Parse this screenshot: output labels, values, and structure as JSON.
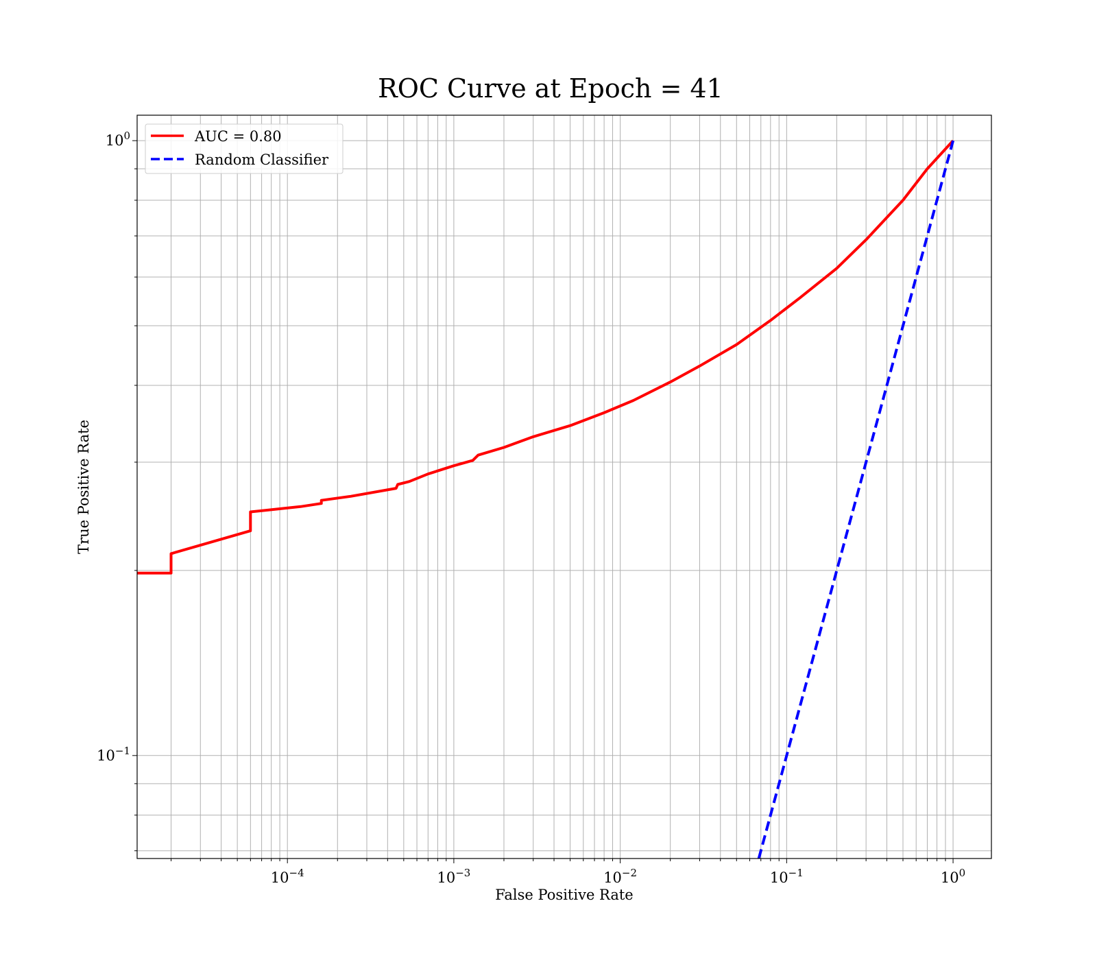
{
  "chart_data": {
    "type": "line",
    "title": "ROC Curve at Epoch = 41",
    "xlabel": "False Positive Rate",
    "ylabel": "True Positive Rate",
    "xscale": "log",
    "yscale": "log",
    "xlim": [
      1.25e-05,
      1.7
    ],
    "ylim": [
      0.068,
      1.1
    ],
    "grid": true,
    "grid_color": "#b0b0b0",
    "legend_position": "top-left",
    "x_ticks": [
      {
        "value": 0.0001,
        "base": "10",
        "exp": "−4"
      },
      {
        "value": 0.001,
        "base": "10",
        "exp": "−3"
      },
      {
        "value": 0.01,
        "base": "10",
        "exp": "−2"
      },
      {
        "value": 0.1,
        "base": "10",
        "exp": "−1"
      },
      {
        "value": 1,
        "base": "10",
        "exp": "0"
      }
    ],
    "y_ticks": [
      {
        "value": 0.1,
        "base": "10",
        "exp": "−1"
      },
      {
        "value": 1,
        "base": "10",
        "exp": "0"
      }
    ],
    "series": [
      {
        "name": "AUC = 0.80",
        "color": "#ff0000",
        "style": "solid",
        "points": [
          [
            1.25e-05,
            0.198
          ],
          [
            2e-05,
            0.198
          ],
          [
            2e-05,
            0.213
          ],
          [
            6e-05,
            0.232
          ],
          [
            6e-05,
            0.249
          ],
          [
            0.00012,
            0.254
          ],
          [
            0.00016,
            0.257
          ],
          [
            0.00016,
            0.26
          ],
          [
            0.00024,
            0.264
          ],
          [
            0.00045,
            0.272
          ],
          [
            0.00046,
            0.276
          ],
          [
            0.00054,
            0.279
          ],
          [
            0.0007,
            0.287
          ],
          [
            0.001,
            0.296
          ],
          [
            0.0013,
            0.302
          ],
          [
            0.0014,
            0.308
          ],
          [
            0.002,
            0.317
          ],
          [
            0.003,
            0.33
          ],
          [
            0.005,
            0.344
          ],
          [
            0.008,
            0.361
          ],
          [
            0.012,
            0.378
          ],
          [
            0.02,
            0.405
          ],
          [
            0.03,
            0.43
          ],
          [
            0.05,
            0.466
          ],
          [
            0.08,
            0.51
          ],
          [
            0.12,
            0.555
          ],
          [
            0.2,
            0.62
          ],
          [
            0.3,
            0.69
          ],
          [
            0.5,
            0.8
          ],
          [
            0.7,
            0.9
          ],
          [
            1.0,
            1.0
          ]
        ]
      },
      {
        "name": "Random Classifier",
        "color": "#0000ff",
        "style": "dashed",
        "points": [
          [
            0.068,
            0.068
          ],
          [
            1.0,
            1.0
          ]
        ]
      }
    ]
  }
}
